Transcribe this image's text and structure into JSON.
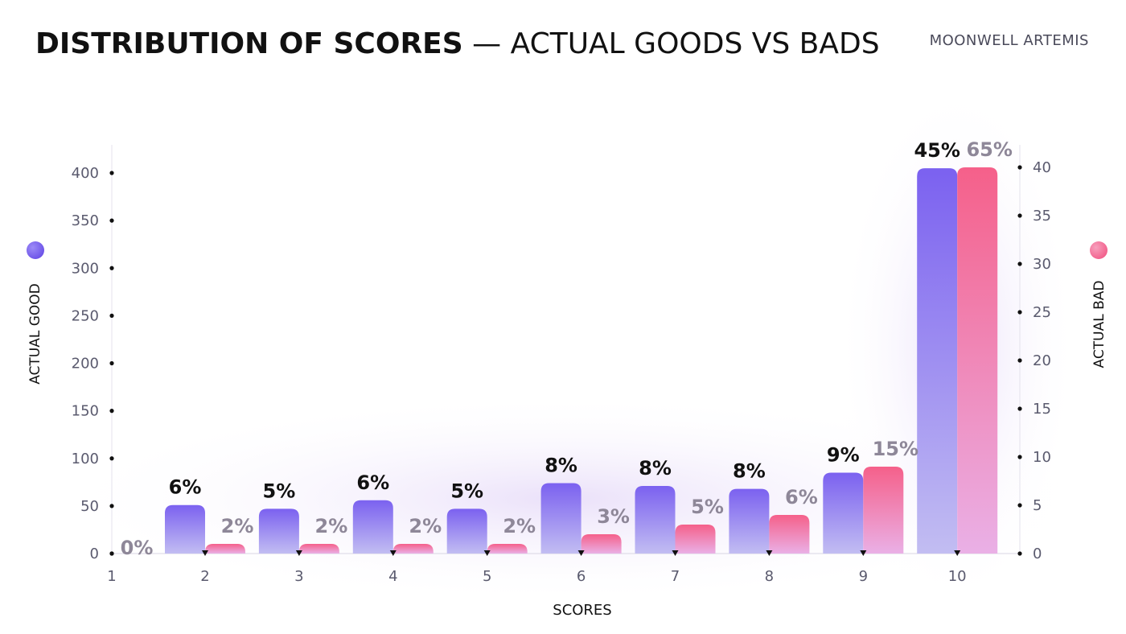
{
  "header": {
    "title_bold": "DISTRIBUTION OF SCORES",
    "title_light": " — ACTUAL GOODS VS BADS",
    "brand": "MOONWELL ARTEMIS"
  },
  "colors": {
    "good": "#7b61f0",
    "bad": "#f5648c",
    "good_label": "#111111",
    "bad_label": "#8e8798"
  },
  "chart_data": {
    "type": "bar",
    "categories": [
      "1",
      "2",
      "3",
      "4",
      "5",
      "6",
      "7",
      "8",
      "9",
      "10"
    ],
    "xlabel": "SCORES",
    "series": [
      {
        "name": "ACTUAL GOOD",
        "axis": "left",
        "values": [
          0,
          51,
          47,
          56,
          47,
          74,
          71,
          68,
          85,
          405
        ],
        "labels": [
          "",
          "6%",
          "5%",
          "6%",
          "5%",
          "8%",
          "8%",
          "8%",
          "9%",
          "45%"
        ]
      },
      {
        "name": "ACTUAL BAD",
        "axis": "right",
        "values": [
          0,
          1,
          1,
          1,
          1,
          2,
          3,
          4,
          9,
          40
        ],
        "labels": [
          "0%",
          "2%",
          "2%",
          "2%",
          "2%",
          "3%",
          "5%",
          "6%",
          "15%",
          "65%"
        ]
      }
    ],
    "y_left": {
      "label": "ACTUAL GOOD",
      "ticks": [
        "0",
        "50",
        "100",
        "150",
        "200",
        "250",
        "300",
        "350",
        "400"
      ],
      "ylim": [
        0,
        400
      ]
    },
    "y_right": {
      "label": "ACTUAL BAD",
      "ticks": [
        "0",
        "5",
        "10",
        "15",
        "20",
        "25",
        "30",
        "35",
        "40"
      ],
      "ylim": [
        0,
        40
      ]
    },
    "grid": false,
    "legend": "axis-side dots"
  }
}
